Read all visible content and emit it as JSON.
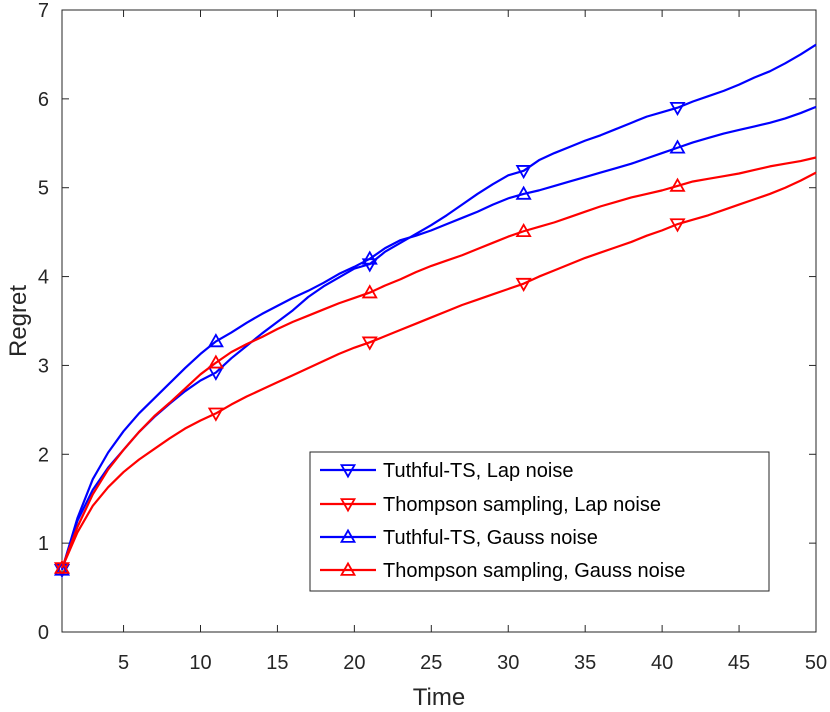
{
  "chart_data": {
    "type": "line",
    "xlabel": "Time",
    "ylabel": "Regret",
    "xlim": [
      1,
      50
    ],
    "ylim": [
      0,
      7
    ],
    "xticks": [
      5,
      10,
      15,
      20,
      25,
      30,
      35,
      40,
      45,
      50
    ],
    "yticks": [
      0,
      1,
      2,
      3,
      4,
      5,
      6,
      7
    ],
    "grid": false,
    "legend_position": "bottom-right",
    "series": [
      {
        "name": "Tuthful-TS, Lap noise",
        "color": "#0000ff",
        "marker": "triangle-down",
        "marker_x": [
          1,
          11,
          21,
          31,
          41
        ],
        "x": [
          1,
          2,
          3,
          4,
          5,
          6,
          7,
          8,
          9,
          10,
          11,
          12,
          13,
          14,
          15,
          16,
          17,
          18,
          19,
          20,
          21,
          22,
          23,
          24,
          25,
          26,
          27,
          28,
          29,
          30,
          31,
          32,
          33,
          34,
          35,
          36,
          37,
          38,
          39,
          40,
          41,
          42,
          43,
          44,
          45,
          46,
          47,
          48,
          49,
          50
        ],
        "values": [
          0.7,
          1.25,
          1.6,
          1.85,
          2.05,
          2.25,
          2.42,
          2.57,
          2.71,
          2.83,
          2.92,
          3.08,
          3.22,
          3.36,
          3.49,
          3.62,
          3.77,
          3.89,
          3.99,
          4.09,
          4.14,
          4.28,
          4.38,
          4.48,
          4.58,
          4.69,
          4.81,
          4.93,
          5.04,
          5.14,
          5.19,
          5.31,
          5.39,
          5.46,
          5.53,
          5.59,
          5.66,
          5.73,
          5.8,
          5.85,
          5.9,
          5.97,
          6.03,
          6.09,
          6.16,
          6.24,
          6.31,
          6.4,
          6.5,
          6.61
        ]
      },
      {
        "name": "Thompson sampling, Lap noise",
        "color": "#ff0000",
        "marker": "triangle-down",
        "marker_x": [
          1,
          11,
          21,
          31,
          41
        ],
        "x": [
          1,
          2,
          3,
          4,
          5,
          6,
          7,
          8,
          9,
          10,
          11,
          12,
          13,
          14,
          15,
          16,
          17,
          18,
          19,
          20,
          21,
          22,
          23,
          24,
          25,
          26,
          27,
          28,
          29,
          30,
          31,
          32,
          33,
          34,
          35,
          36,
          37,
          38,
          39,
          40,
          41,
          42,
          43,
          44,
          45,
          46,
          47,
          48,
          49,
          50
        ],
        "values": [
          0.72,
          1.12,
          1.42,
          1.63,
          1.8,
          1.94,
          2.06,
          2.18,
          2.29,
          2.38,
          2.46,
          2.56,
          2.65,
          2.73,
          2.81,
          2.89,
          2.97,
          3.05,
          3.13,
          3.2,
          3.26,
          3.33,
          3.4,
          3.47,
          3.54,
          3.61,
          3.68,
          3.74,
          3.8,
          3.86,
          3.92,
          4.0,
          4.07,
          4.14,
          4.21,
          4.27,
          4.33,
          4.39,
          4.46,
          4.52,
          4.59,
          4.64,
          4.69,
          4.75,
          4.81,
          4.87,
          4.93,
          5.0,
          5.08,
          5.17
        ]
      },
      {
        "name": "Tuthful-TS, Gauss noise",
        "color": "#0000ff",
        "marker": "triangle-up",
        "marker_x": [
          1,
          11,
          21,
          31,
          41
        ],
        "x": [
          1,
          2,
          3,
          4,
          5,
          6,
          7,
          8,
          9,
          10,
          11,
          12,
          13,
          14,
          15,
          16,
          17,
          18,
          19,
          20,
          21,
          22,
          23,
          24,
          25,
          26,
          27,
          28,
          29,
          30,
          31,
          32,
          33,
          34,
          35,
          36,
          37,
          38,
          39,
          40,
          41,
          42,
          43,
          44,
          45,
          46,
          47,
          48,
          49,
          50
        ],
        "values": [
          0.7,
          1.28,
          1.72,
          2.02,
          2.26,
          2.46,
          2.63,
          2.8,
          2.97,
          3.13,
          3.27,
          3.37,
          3.48,
          3.58,
          3.67,
          3.76,
          3.84,
          3.93,
          4.03,
          4.11,
          4.2,
          4.32,
          4.41,
          4.46,
          4.52,
          4.59,
          4.66,
          4.73,
          4.81,
          4.88,
          4.93,
          4.97,
          5.02,
          5.07,
          5.12,
          5.17,
          5.22,
          5.27,
          5.33,
          5.39,
          5.45,
          5.51,
          5.56,
          5.61,
          5.65,
          5.69,
          5.73,
          5.78,
          5.84,
          5.91
        ]
      },
      {
        "name": "Thompson sampling, Gauss noise",
        "color": "#ff0000",
        "marker": "triangle-up",
        "marker_x": [
          1,
          11,
          21,
          31,
          41
        ],
        "x": [
          1,
          2,
          3,
          4,
          5,
          6,
          7,
          8,
          9,
          10,
          11,
          12,
          13,
          14,
          15,
          16,
          17,
          18,
          19,
          20,
          21,
          22,
          23,
          24,
          25,
          26,
          27,
          28,
          29,
          30,
          31,
          32,
          33,
          34,
          35,
          36,
          37,
          38,
          39,
          40,
          41,
          42,
          43,
          44,
          45,
          46,
          47,
          48,
          49,
          50
        ],
        "values": [
          0.72,
          1.18,
          1.55,
          1.83,
          2.05,
          2.25,
          2.43,
          2.58,
          2.74,
          2.9,
          3.03,
          3.15,
          3.24,
          3.32,
          3.41,
          3.49,
          3.56,
          3.63,
          3.7,
          3.76,
          3.82,
          3.9,
          3.97,
          4.05,
          4.12,
          4.18,
          4.24,
          4.31,
          4.38,
          4.45,
          4.51,
          4.56,
          4.61,
          4.67,
          4.73,
          4.79,
          4.84,
          4.89,
          4.93,
          4.97,
          5.02,
          5.07,
          5.1,
          5.13,
          5.16,
          5.2,
          5.24,
          5.27,
          5.3,
          5.34
        ]
      }
    ]
  }
}
